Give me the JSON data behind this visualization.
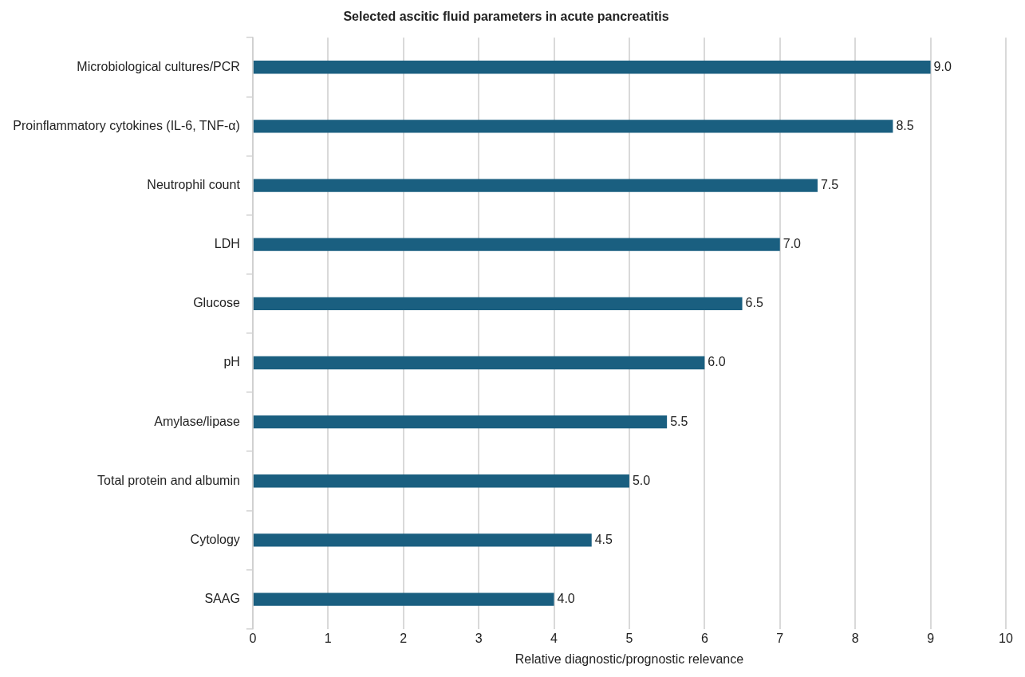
{
  "chart_data": {
    "type": "bar",
    "orientation": "horizontal",
    "title": "Selected ascitic fluid parameters in acute pancreatitis",
    "xlabel": "Relative diagnostic/prognostic relevance",
    "categories": [
      "Microbiological cultures/PCR",
      "Proinflammatory cytokines (IL-6, TNF-α)",
      "Neutrophil count",
      "LDH",
      "Glucose",
      "pH",
      "Amylase/lipase",
      "Total protein and albumin",
      "Cytology",
      "SAAG"
    ],
    "values": [
      9.0,
      8.5,
      7.5,
      7.0,
      6.5,
      6.0,
      5.5,
      5.0,
      4.5,
      4.0
    ],
    "value_labels": [
      "9.0",
      "8.5",
      "7.5",
      "7.0",
      "6.5",
      "6.0",
      "5.5",
      "5.0",
      "4.5",
      "4.0"
    ],
    "color": "#1a5f80",
    "xlim": [
      0,
      10
    ],
    "xticks": [
      0,
      1,
      2,
      3,
      4,
      5,
      6,
      7,
      8,
      9,
      10
    ],
    "grid": "x",
    "legend": false
  }
}
